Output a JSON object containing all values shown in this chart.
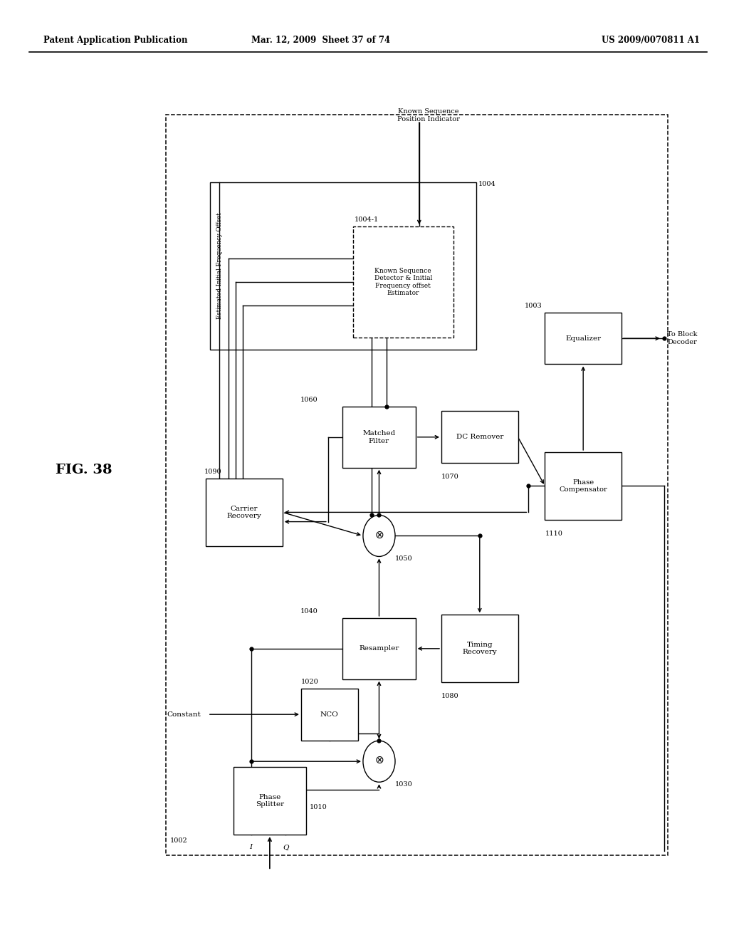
{
  "bg": "#ffffff",
  "header_left": "Patent Application Publication",
  "header_mid": "Mar. 12, 2009  Sheet 37 of 74",
  "header_right": "US 2009/0070811 A1",
  "fig_label": "FIG. 38"
}
